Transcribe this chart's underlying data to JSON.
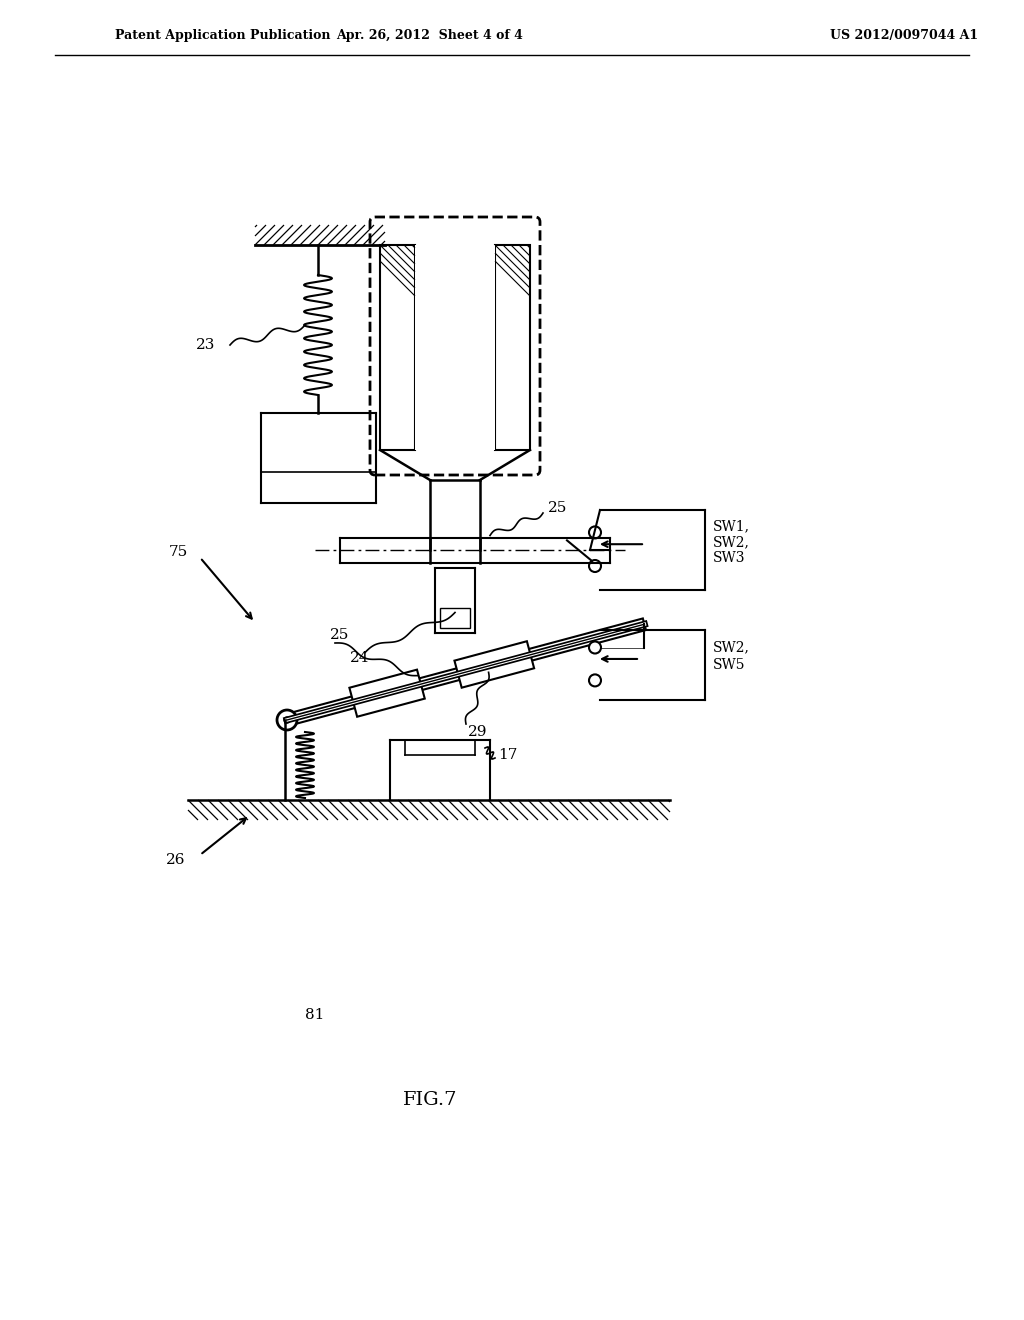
{
  "header_left": "Patent Application Publication",
  "header_center": "Apr. 26, 2012  Sheet 4 of 4",
  "header_right": "US 2012/0097044 A1",
  "figure_label": "FIG.7",
  "bg_color": "#ffffff",
  "line_color": "#000000"
}
